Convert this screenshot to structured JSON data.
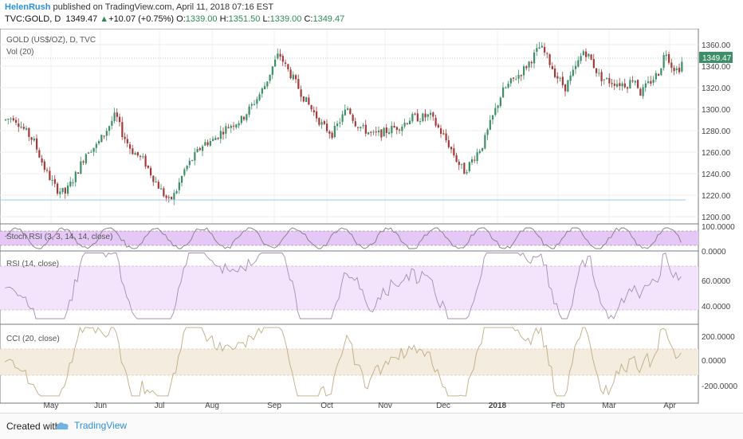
{
  "header": {
    "author": "HelenRush",
    "published_text": "published on TradingView.com, April 11, 2018 07:16 EST",
    "symbol": "TVC:GOLD, D",
    "last": "1349.47",
    "change_arrow": "▲",
    "change": "+10.07 (+0.75%)",
    "open_label": "O:",
    "open": "1339.00",
    "high_label": "H:",
    "high": "1351.50",
    "low_label": "L:",
    "low": "1339.00",
    "close_label": "C:",
    "close": "1349.47"
  },
  "main_pane": {
    "title": "GOLD (US$/OZ), D, TVC",
    "vol_label": "Vol (20)",
    "price_badge": "1349.47"
  },
  "stoch_pane": {
    "title": "Stoch RSI (3, 3, 14, 14, close)"
  },
  "rsi_pane": {
    "title": "RSI (14, close)"
  },
  "cci_pane": {
    "title": "CCI (20, close)"
  },
  "footer": {
    "created_with": "Created with",
    "brand": "TradingView"
  },
  "colors": {
    "up": "#3c8f66",
    "down": "#a23a3a",
    "stoch_band": "#e6c8f7",
    "rsi_band": "#f3e4fb",
    "cci_band": "#f4ecdf",
    "badge": "#3c8f66",
    "brand": "#2f8fd6"
  },
  "chart_data": {
    "type": "candlestick",
    "title": "GOLD (US$/OZ), D, TVC",
    "months": [
      "May",
      "Jun",
      "Jul",
      "Aug",
      "Sep",
      "Oct",
      "Nov",
      "Dec",
      "2018",
      "Feb",
      "Mar",
      "Apr"
    ],
    "y_ticks": [
      1200,
      1220,
      1240,
      1260,
      1280,
      1300,
      1320,
      1340,
      1360
    ],
    "ylim": [
      1195,
      1370
    ],
    "last_price": 1349.47,
    "price_path": [
      {
        "x": 0,
        "y": 1290
      },
      {
        "x": 5,
        "y": 1293
      },
      {
        "x": 10,
        "y": 1284
      },
      {
        "x": 18,
        "y": 1270
      },
      {
        "x": 25,
        "y": 1244
      },
      {
        "x": 32,
        "y": 1226
      },
      {
        "x": 38,
        "y": 1222
      },
      {
        "x": 45,
        "y": 1240
      },
      {
        "x": 52,
        "y": 1262
      },
      {
        "x": 58,
        "y": 1266
      },
      {
        "x": 64,
        "y": 1280
      },
      {
        "x": 70,
        "y": 1295
      },
      {
        "x": 74,
        "y": 1278
      },
      {
        "x": 80,
        "y": 1262
      },
      {
        "x": 88,
        "y": 1252
      },
      {
        "x": 94,
        "y": 1236
      },
      {
        "x": 100,
        "y": 1222
      },
      {
        "x": 104,
        "y": 1214
      },
      {
        "x": 108,
        "y": 1222
      },
      {
        "x": 114,
        "y": 1244
      },
      {
        "x": 120,
        "y": 1256
      },
      {
        "x": 126,
        "y": 1268
      },
      {
        "x": 132,
        "y": 1271
      },
      {
        "x": 138,
        "y": 1280
      },
      {
        "x": 144,
        "y": 1286
      },
      {
        "x": 150,
        "y": 1290
      },
      {
        "x": 155,
        "y": 1300
      },
      {
        "x": 160,
        "y": 1310
      },
      {
        "x": 165,
        "y": 1322
      },
      {
        "x": 170,
        "y": 1340
      },
      {
        "x": 174,
        "y": 1352
      },
      {
        "x": 178,
        "y": 1340
      },
      {
        "x": 184,
        "y": 1326
      },
      {
        "x": 190,
        "y": 1310
      },
      {
        "x": 196,
        "y": 1297
      },
      {
        "x": 202,
        "y": 1284
      },
      {
        "x": 208,
        "y": 1277
      },
      {
        "x": 213,
        "y": 1290
      },
      {
        "x": 218,
        "y": 1302
      },
      {
        "x": 222,
        "y": 1288
      },
      {
        "x": 228,
        "y": 1281
      },
      {
        "x": 234,
        "y": 1276
      },
      {
        "x": 240,
        "y": 1278
      },
      {
        "x": 246,
        "y": 1282
      },
      {
        "x": 252,
        "y": 1285
      },
      {
        "x": 258,
        "y": 1292
      },
      {
        "x": 264,
        "y": 1292
      },
      {
        "x": 270,
        "y": 1294
      },
      {
        "x": 276,
        "y": 1281
      },
      {
        "x": 282,
        "y": 1267
      },
      {
        "x": 288,
        "y": 1250
      },
      {
        "x": 292,
        "y": 1242
      },
      {
        "x": 298,
        "y": 1255
      },
      {
        "x": 304,
        "y": 1268
      },
      {
        "x": 310,
        "y": 1293
      },
      {
        "x": 316,
        "y": 1316
      },
      {
        "x": 322,
        "y": 1326
      },
      {
        "x": 328,
        "y": 1334
      },
      {
        "x": 334,
        "y": 1345
      },
      {
        "x": 340,
        "y": 1358
      },
      {
        "x": 344,
        "y": 1350
      },
      {
        "x": 350,
        "y": 1332
      },
      {
        "x": 356,
        "y": 1320
      },
      {
        "x": 362,
        "y": 1336
      },
      {
        "x": 368,
        "y": 1355
      },
      {
        "x": 372,
        "y": 1347
      },
      {
        "x": 378,
        "y": 1330
      },
      {
        "x": 384,
        "y": 1326
      },
      {
        "x": 390,
        "y": 1324
      },
      {
        "x": 396,
        "y": 1323
      },
      {
        "x": 400,
        "y": 1330
      },
      {
        "x": 404,
        "y": 1315
      },
      {
        "x": 410,
        "y": 1325
      },
      {
        "x": 416,
        "y": 1335
      },
      {
        "x": 420,
        "y": 1355
      },
      {
        "x": 424,
        "y": 1340
      },
      {
        "x": 428,
        "y": 1336
      },
      {
        "x": 432,
        "y": 1349
      }
    ],
    "rsi_ticks": [
      40,
      60
    ],
    "cci_ticks": [
      -200,
      0,
      200
    ],
    "stoch_ticks": [
      0,
      100
    ]
  }
}
